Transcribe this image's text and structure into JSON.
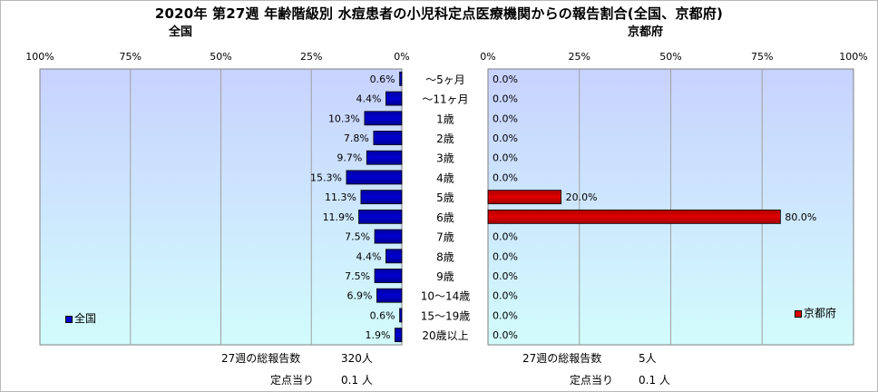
{
  "title": "2020年 第27週 年齢階級別 水痘患者の小児科定点医療機関からの報告割合(全国、京都府)",
  "colors": {
    "national": "#0000d0",
    "kyoto": "#e00000",
    "plot_bg_top": "#c8d2ff",
    "plot_bg_bottom": "#d2fcfc",
    "grid": "#a0a0a0"
  },
  "chart_data": [
    {
      "type": "bar",
      "orientation": "horizontal",
      "title": "全国",
      "legend": "全国",
      "legend_position": "bottom-left",
      "axis_reversed": true,
      "xlim": [
        0,
        100
      ],
      "ticks": [
        "0%",
        "25%",
        "50%",
        "75%",
        "100%"
      ],
      "grid": true,
      "categories": [
        "～5ヶ月",
        "～11ヶ月",
        "1歳",
        "2歳",
        "3歳",
        "4歳",
        "5歳",
        "6歳",
        "7歳",
        "8歳",
        "9歳",
        "10～14歳",
        "15～19歳",
        "20歳以上"
      ],
      "values": [
        0.6,
        4.4,
        10.3,
        7.8,
        9.7,
        15.3,
        11.3,
        11.9,
        7.5,
        4.4,
        7.5,
        6.9,
        0.6,
        1.9
      ],
      "labels": [
        "0.6%",
        "4.4%",
        "10.3%",
        "7.8%",
        "9.7%",
        "15.3%",
        "11.3%",
        "11.9%",
        "7.5%",
        "4.4%",
        "7.5%",
        "6.9%",
        "0.6%",
        "1.9%"
      ]
    },
    {
      "type": "bar",
      "orientation": "horizontal",
      "title": "京都府",
      "legend": "京都府",
      "legend_position": "bottom-right",
      "axis_reversed": false,
      "xlim": [
        0,
        100
      ],
      "ticks": [
        "0%",
        "25%",
        "50%",
        "75%",
        "100%"
      ],
      "grid": true,
      "categories": [
        "～5ヶ月",
        "～11ヶ月",
        "1歳",
        "2歳",
        "3歳",
        "4歳",
        "5歳",
        "6歳",
        "7歳",
        "8歳",
        "9歳",
        "10～14歳",
        "15～19歳",
        "20歳以上"
      ],
      "values": [
        0,
        0,
        0,
        0,
        0,
        0,
        20.0,
        80.0,
        0,
        0,
        0,
        0,
        0,
        0
      ],
      "labels": [
        "0.0%",
        "0.0%",
        "0.0%",
        "0.0%",
        "0.0%",
        "0.0%",
        "20.0%",
        "80.0%",
        "0.0%",
        "0.0%",
        "0.0%",
        "0.0%",
        "0.0%",
        "0.0%"
      ]
    }
  ],
  "footer": {
    "national": {
      "total_label": "27週の総報告数",
      "total_value": "320人",
      "per_label": "定点当り",
      "per_value": "0.1 人"
    },
    "kyoto": {
      "total_label": "27週の総報告数",
      "total_value": "5人",
      "per_label": "定点当り",
      "per_value": "0.1 人"
    }
  }
}
